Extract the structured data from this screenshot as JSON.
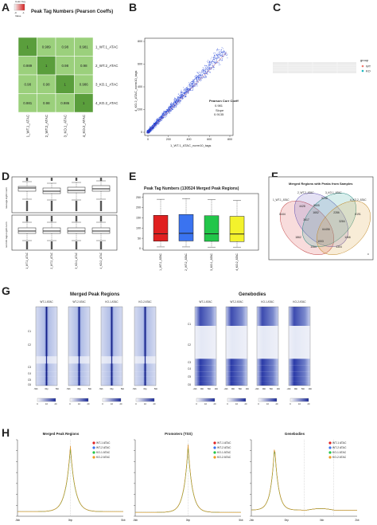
{
  "panels": {
    "A": {
      "letter": "A",
      "title": "Peak Tag Numbers (Pearson Coeffs)",
      "legend_title": "Color Key",
      "legend_ticks": [
        "-0",
        "-1"
      ],
      "legend_xlabel": "Value",
      "row_labels": [
        "1_WT.1_ATAC",
        "2_WT.2_ATAC",
        "3_KO.1_ATAC",
        "4_KO.2_ATAC"
      ],
      "col_labels": [
        "1_WT.1_ATAC",
        "2_WT.2_ATAC",
        "3_KO.1_ATAC",
        "4_KO.2_ATAC"
      ],
      "colors": {
        "high": "#5a9e3c",
        "low": "#9bd07c"
      }
    },
    "B": {
      "letter": "B",
      "xlabel": "1_WT.1_ATAC_norm10_tags",
      "ylabel": "4_KO.2_ATAC_norm10_tags",
      "x_ticks": [
        "0",
        "200",
        "400",
        "600",
        "800"
      ],
      "y_ticks": [
        "0",
        "200",
        "400",
        "600",
        "800"
      ],
      "corr_title": "Pearson Corr Coeff",
      "corr_value": "0.981",
      "slope_title": "Slope",
      "slope_value": "0.9135",
      "color": "#1f3fd6"
    },
    "C": {
      "letter": "C",
      "legend_title": "group",
      "legend_items": [
        "WT",
        "KO"
      ],
      "colors": [
        "#f07a70",
        "#19b8bf"
      ]
    },
    "D": {
      "letter": "D",
      "ylabel_top": "raw.tags.log10.norm",
      "ylabel_bottom": "norm10.tags.log10.norm",
      "x_labels": [
        "1_WT.1_ATAC",
        "2_WT.2_ATAC",
        "3_KO.1_ATAC",
        "4_KO.2_ATAC"
      ]
    },
    "E": {
      "letter": "E",
      "title": "Peak Tag Numbers (130524 Merged Peak Regions)",
      "y_ticks": [
        "0",
        "50",
        "100",
        "150",
        "200",
        "250"
      ],
      "x_labels": [
        "1_WT.1_ATAC",
        "2_WT.2_ATAC",
        "3_KO.1_ATAC",
        "4_KO.2_ATAC"
      ],
      "colors": [
        "#e02020",
        "#3a73f0",
        "#22c64a",
        "#f3f22c"
      ]
    },
    "F": {
      "letter": "F",
      "title": "Merged Regions with Peaks from Samples",
      "set_labels": [
        "1_WT.1_ATAC",
        "2_WT.2_ATAC",
        "3_KO.1_ATAC",
        "4_KO.2_ATAC"
      ],
      "numbers": [
        "8444",
        "4428",
        "5248",
        "8191",
        "8605",
        "1652",
        "2286",
        "3617",
        "3284",
        "64456",
        "1862",
        "1466",
        "1003",
        "1064",
        "1304"
      ],
      "corner": "0",
      "colors": [
        "#e06060",
        "#7a6ac8",
        "#3aa8a0",
        "#e0a848"
      ]
    },
    "G": {
      "letter": "G",
      "left_title": "Merged Peak Regions",
      "right_title": "Genebodies",
      "left_cols": [
        "WT-1 ATAC",
        "WT-2 ATAC",
        "KO-1 ATAC",
        "KO-2 ATAC"
      ],
      "right_cols": [
        "WT-1 ATAC",
        "WT-2 ATAC",
        "KO-1 ATAC",
        "KO-2 ATAC"
      ],
      "left_clusters": [
        "C1",
        "C2",
        "C3",
        "C4",
        "C5",
        "C6"
      ],
      "right_clusters": [
        "C1",
        "C2",
        "C3",
        "C4",
        "C5",
        "C6"
      ],
      "left_axis": [
        "-5kb",
        "0bp",
        "5kb"
      ],
      "right_axis": [
        "-2kb",
        "0kb",
        "5kb",
        "2kb"
      ],
      "scale_ticks": [
        "0",
        "10",
        "20"
      ],
      "color_dark": "#1a2a9a",
      "color_light": "#dfe4f4"
    },
    "H": {
      "letter": "H",
      "titles": [
        "Merged Peak Regions",
        "Promoters (TSS)",
        "Genebodies"
      ],
      "legend_items": [
        "WT-1 ATAC",
        "WT-2 ATAC",
        "KO-1 ATAC",
        "KO-2 ATAC"
      ],
      "legend_colors": [
        "#e02020",
        "#3a73f0",
        "#22c64a",
        "#f09a20"
      ],
      "axis1": [
        "-5kb",
        "0bp",
        "5kb"
      ],
      "axis2": [
        "-5kb",
        "0bp",
        "5kb"
      ],
      "axis3": [
        "-2kb",
        "0bp",
        "0kb",
        "2kb"
      ]
    }
  }
}
